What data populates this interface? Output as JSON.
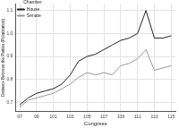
{
  "chart_data": {
    "type": "line",
    "x_label": "Congress",
    "y_label": "Distance Between the Parties (Polarization)",
    "legend_title": "Chamber",
    "x": [
      97,
      98,
      99,
      100,
      101,
      102,
      103,
      104,
      105,
      106,
      107,
      108,
      109,
      110,
      111,
      112,
      113,
      114,
      115
    ],
    "series": [
      {
        "name": "House",
        "color": "#222222",
        "line_style": "solid",
        "values": [
          0.69,
          0.72,
          0.74,
          0.75,
          0.76,
          0.78,
          0.82,
          0.88,
          0.9,
          0.91,
          0.93,
          0.95,
          0.97,
          0.98,
          1.0,
          1.1,
          0.98,
          0.98,
          0.99
        ]
      },
      {
        "name": "Senate",
        "color": "#999999",
        "line_style": "solid",
        "values": [
          0.68,
          0.71,
          0.72,
          0.73,
          0.74,
          0.76,
          0.78,
          0.81,
          0.83,
          0.82,
          0.83,
          0.82,
          0.86,
          0.87,
          0.89,
          0.93,
          0.84,
          0.85,
          0.86
        ]
      }
    ],
    "xlim": [
      96.5,
      115.5
    ],
    "xticks": [
      97,
      99,
      101,
      103,
      105,
      107,
      109,
      111,
      113,
      115
    ],
    "ylim": [
      0.66,
      1.13
    ],
    "yticks": [
      0.7,
      0.8,
      0.9,
      {
        "value": 1,
        "label": "1.0"
      },
      1.1
    ],
    "grid": true,
    "legend": "top-left"
  }
}
